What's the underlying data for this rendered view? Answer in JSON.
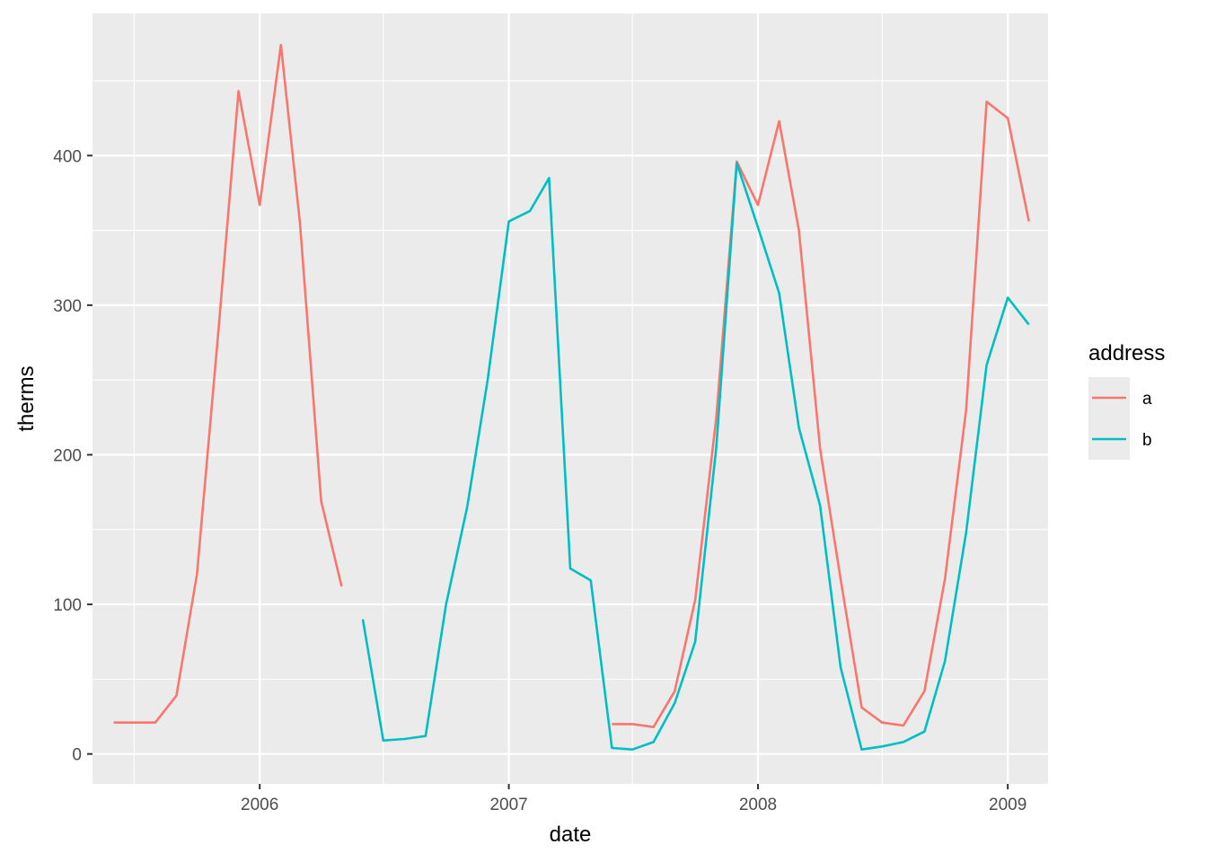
{
  "chart_data": {
    "type": "line",
    "xlabel": "date",
    "ylabel": "therms",
    "xlim": [
      "2005-05-01",
      "2009-03-01"
    ],
    "ylim": [
      -20,
      495
    ],
    "x_ticks": [
      {
        "date": "2006-01-01",
        "label": "2006"
      },
      {
        "date": "2007-01-01",
        "label": "2007"
      },
      {
        "date": "2008-01-01",
        "label": "2008"
      },
      {
        "date": "2009-01-01",
        "label": "2009"
      }
    ],
    "x_minor_ticks": [
      "2005-07-01",
      "2006-07-01",
      "2007-07-01",
      "2008-07-01"
    ],
    "y_ticks": [
      {
        "value": 0,
        "label": "0"
      },
      {
        "value": 100,
        "label": "100"
      },
      {
        "value": 200,
        "label": "200"
      },
      {
        "value": 300,
        "label": "300"
      },
      {
        "value": 400,
        "label": "400"
      }
    ],
    "y_minor_ticks": [
      50,
      150,
      250,
      350,
      450
    ],
    "grid": true,
    "background": "#ebebeb",
    "legend": {
      "title": "address",
      "position": "right"
    },
    "series": [
      {
        "name": "a",
        "color": "#f8766d",
        "points": [
          [
            "2005-06-01",
            21
          ],
          [
            "2005-07-01",
            21
          ],
          [
            "2005-08-01",
            21
          ],
          [
            "2005-09-01",
            39
          ],
          [
            "2005-10-01",
            120
          ],
          [
            "2005-11-01",
            280
          ],
          [
            "2005-12-01",
            443
          ],
          [
            "2006-01-01",
            367
          ],
          [
            "2006-02-01",
            474
          ],
          [
            "2006-03-01",
            355
          ],
          [
            "2006-04-01",
            169
          ],
          [
            "2006-05-01",
            112
          ],
          null,
          [
            "2007-06-01",
            20
          ],
          [
            "2007-07-01",
            20
          ],
          [
            "2007-08-01",
            18
          ],
          [
            "2007-09-01",
            42
          ],
          [
            "2007-10-01",
            103
          ],
          [
            "2007-11-01",
            225
          ],
          [
            "2007-12-01",
            396
          ],
          [
            "2008-01-01",
            367
          ],
          [
            "2008-02-01",
            423
          ],
          [
            "2008-03-01",
            350
          ],
          [
            "2008-04-01",
            204
          ],
          [
            "2008-05-01",
            117
          ],
          [
            "2008-06-01",
            31
          ],
          [
            "2008-07-01",
            21
          ],
          [
            "2008-08-01",
            19
          ],
          [
            "2008-09-01",
            42
          ],
          [
            "2008-10-01",
            117
          ],
          [
            "2008-11-01",
            230
          ],
          [
            "2008-12-01",
            436
          ],
          [
            "2009-01-01",
            425
          ],
          [
            "2009-02-01",
            356
          ]
        ]
      },
      {
        "name": "b",
        "color": "#00bfc4",
        "points": [
          [
            "2006-06-01",
            90
          ],
          [
            "2006-07-01",
            9
          ],
          [
            "2006-08-01",
            10
          ],
          [
            "2006-09-01",
            12
          ],
          [
            "2006-10-01",
            100
          ],
          [
            "2006-11-01",
            165
          ],
          [
            "2006-12-01",
            250
          ],
          [
            "2007-01-01",
            356
          ],
          [
            "2007-02-01",
            363
          ],
          [
            "2007-03-01",
            385
          ],
          [
            "2007-04-01",
            124
          ],
          [
            "2007-05-01",
            116
          ],
          [
            "2007-06-01",
            4
          ],
          [
            "2007-07-01",
            3
          ],
          [
            "2007-08-01",
            8
          ],
          [
            "2007-09-01",
            34
          ],
          [
            "2007-10-01",
            75
          ],
          [
            "2007-11-01",
            205
          ],
          [
            "2007-12-01",
            395
          ],
          [
            "2008-01-01",
            352
          ],
          [
            "2008-02-01",
            308
          ],
          [
            "2008-03-01",
            218
          ],
          [
            "2008-04-01",
            166
          ],
          [
            "2008-05-01",
            58
          ],
          [
            "2008-06-01",
            3
          ],
          [
            "2008-07-01",
            5
          ],
          [
            "2008-08-01",
            8
          ],
          [
            "2008-09-01",
            15
          ],
          [
            "2008-10-01",
            62
          ],
          [
            "2008-11-01",
            148
          ],
          [
            "2008-12-01",
            260
          ],
          [
            "2009-01-01",
            305
          ],
          [
            "2009-02-01",
            287
          ]
        ]
      }
    ]
  }
}
